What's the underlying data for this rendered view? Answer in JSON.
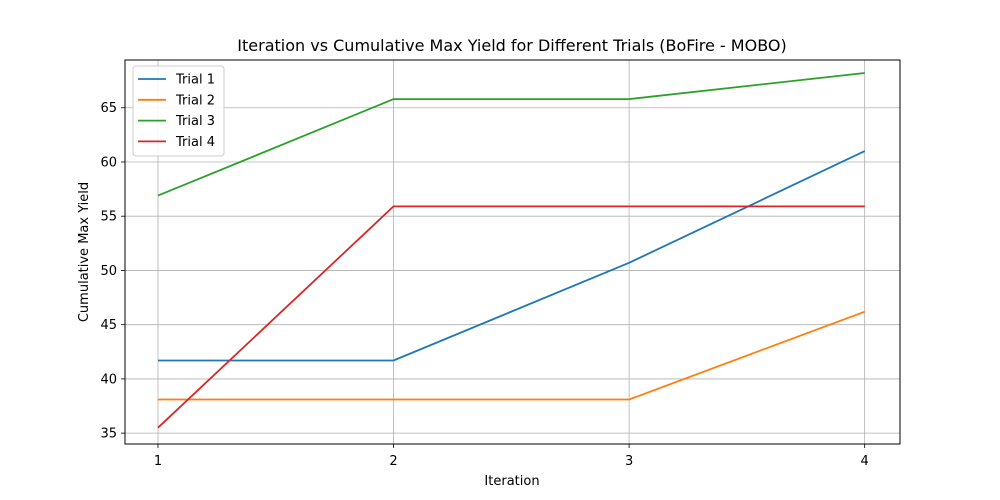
{
  "chart_data": {
    "type": "line",
    "title": "Iteration vs Cumulative Max Yield for Different Trials (BoFire - MOBO)",
    "xlabel": "Iteration",
    "ylabel": "Cumulative Max Yield",
    "x": [
      1,
      2,
      3,
      4
    ],
    "xticks": [
      1,
      2,
      3,
      4
    ],
    "yticks": [
      35,
      40,
      45,
      50,
      55,
      60,
      65
    ],
    "xlim": [
      0.86,
      4.15
    ],
    "ylim": [
      34.0,
      69.4
    ],
    "grid": true,
    "legend_position": "top-left",
    "series": [
      {
        "name": "Trial 1",
        "color": "#1f77b4",
        "values": [
          41.7,
          41.7,
          50.7,
          61.0
        ]
      },
      {
        "name": "Trial 2",
        "color": "#ff7f0e",
        "values": [
          38.1,
          38.1,
          38.1,
          46.2
        ]
      },
      {
        "name": "Trial 3",
        "color": "#2ca02c",
        "values": [
          56.9,
          65.8,
          65.8,
          68.2
        ]
      },
      {
        "name": "Trial 4",
        "color": "#d62728",
        "values": [
          35.5,
          55.9,
          55.9,
          55.9
        ]
      }
    ]
  }
}
